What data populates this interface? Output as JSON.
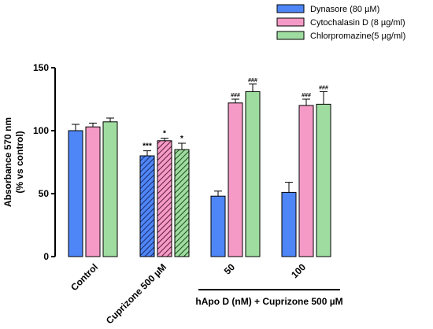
{
  "chart_data": {
    "type": "bar",
    "ylabel_line1": "Absorbance 570 nm",
    "ylabel_line2": "(% vs control)",
    "ylim": [
      0,
      150
    ],
    "yticks": [
      0,
      50,
      100,
      150
    ],
    "categories": [
      "Control",
      "Cuprizone 500 µM",
      "50",
      "100"
    ],
    "group_label": "hApo D (nM) + Cuprizone 500 µM",
    "legend_position": "top-right",
    "series": [
      {
        "name": "Dynasore (80 µM)",
        "color": "#4f86f7",
        "values": [
          100,
          80,
          48,
          51
        ],
        "errors": [
          5,
          4,
          4,
          8
        ],
        "hatched": [
          false,
          true,
          false,
          false
        ],
        "annotations": [
          "",
          "***",
          "",
          ""
        ]
      },
      {
        "name": "Cytochalasin D (8 µg/ml)",
        "color": "#f59ac6",
        "values": [
          103,
          92,
          122,
          120
        ],
        "errors": [
          3,
          2,
          3,
          5
        ],
        "hatched": [
          false,
          true,
          false,
          false
        ],
        "annotations": [
          "",
          "*",
          "###",
          "###"
        ]
      },
      {
        "name": "Chlorpromazine(5 µg/ml)",
        "color": "#9fdca0",
        "values": [
          107,
          85,
          131,
          121
        ],
        "errors": [
          3,
          5,
          6,
          10
        ],
        "hatched": [
          false,
          true,
          false,
          false
        ],
        "annotations": [
          "",
          "*",
          "###",
          "###"
        ]
      }
    ]
  }
}
